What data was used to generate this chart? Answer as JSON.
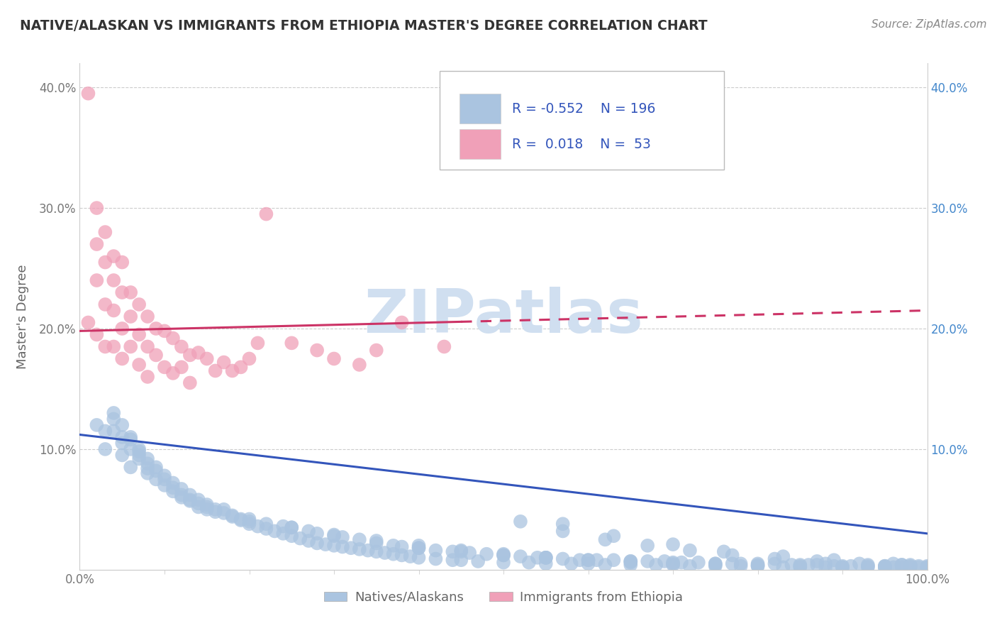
{
  "title": "NATIVE/ALASKAN VS IMMIGRANTS FROM ETHIOPIA MASTER'S DEGREE CORRELATION CHART",
  "source": "Source: ZipAtlas.com",
  "ylabel": "Master's Degree",
  "watermark": "ZIPatlas",
  "xlim": [
    0,
    1.0
  ],
  "ylim": [
    0,
    0.42
  ],
  "blue_R": "-0.552",
  "blue_N": "196",
  "pink_R": "0.018",
  "pink_N": "53",
  "blue_color": "#aac4e0",
  "pink_color": "#f0a0b8",
  "blue_line_color": "#3355bb",
  "pink_line_color": "#cc3366",
  "legend_text_color": "#3355bb",
  "title_color": "#333333",
  "watermark_color": "#d0dff0",
  "grid_color": "#cccccc",
  "background_color": "#ffffff",
  "blue_line_y0": 0.112,
  "blue_line_y1": 0.03,
  "pink_line_y0": 0.198,
  "pink_line_y1": 0.215,
  "blue_scatter_x": [
    0.02,
    0.03,
    0.04,
    0.05,
    0.06,
    0.07,
    0.08,
    0.09,
    0.1,
    0.11,
    0.12,
    0.13,
    0.14,
    0.15,
    0.16,
    0.17,
    0.18,
    0.19,
    0.2,
    0.22,
    0.24,
    0.25,
    0.27,
    0.28,
    0.3,
    0.31,
    0.33,
    0.35,
    0.37,
    0.38,
    0.4,
    0.42,
    0.44,
    0.46,
    0.48,
    0.5,
    0.52,
    0.54,
    0.55,
    0.57,
    0.59,
    0.61,
    0.63,
    0.65,
    0.67,
    0.69,
    0.71,
    0.73,
    0.75,
    0.77,
    0.78,
    0.8,
    0.82,
    0.84,
    0.86,
    0.87,
    0.89,
    0.91,
    0.93,
    0.95,
    0.96,
    0.97,
    0.98,
    0.99,
    1.0,
    1.0,
    0.99,
    0.98,
    0.97,
    0.96,
    0.04,
    0.05,
    0.06,
    0.07,
    0.08,
    0.09,
    0.1,
    0.11,
    0.12,
    0.13,
    0.14,
    0.15,
    0.16,
    0.17,
    0.18,
    0.19,
    0.2,
    0.21,
    0.22,
    0.23,
    0.24,
    0.25,
    0.26,
    0.27,
    0.28,
    0.29,
    0.3,
    0.31,
    0.32,
    0.33,
    0.34,
    0.35,
    0.36,
    0.37,
    0.38,
    0.39,
    0.4,
    0.42,
    0.44,
    0.45,
    0.47,
    0.5,
    0.53,
    0.55,
    0.58,
    0.6,
    0.62,
    0.65,
    0.68,
    0.7,
    0.72,
    0.75,
    0.78,
    0.8,
    0.83,
    0.85,
    0.88,
    0.9,
    0.93,
    0.95,
    0.05,
    0.06,
    0.07,
    0.08,
    0.09,
    0.1,
    0.11,
    0.12,
    0.13,
    0.14,
    0.52,
    0.57,
    0.62,
    0.67,
    0.72,
    0.77,
    0.82,
    0.87,
    0.92,
    0.97,
    0.15,
    0.2,
    0.25,
    0.3,
    0.35,
    0.4,
    0.45,
    0.5,
    0.55,
    0.6,
    0.65,
    0.7,
    0.75,
    0.8,
    0.85,
    0.9,
    0.95,
    1.0,
    0.03,
    0.04,
    0.05,
    0.06,
    0.07,
    0.08,
    0.57,
    0.63,
    0.7,
    0.76,
    0.83,
    0.89,
    0.4,
    0.45,
    0.5,
    0.55,
    0.6,
    0.65,
    0.7,
    0.75,
    0.8,
    0.85,
    0.9,
    0.95,
    1.0,
    0.88,
    0.93,
    0.98
  ],
  "blue_scatter_y": [
    0.12,
    0.1,
    0.115,
    0.105,
    0.085,
    0.095,
    0.08,
    0.075,
    0.07,
    0.065,
    0.06,
    0.058,
    0.055,
    0.052,
    0.048,
    0.05,
    0.045,
    0.042,
    0.04,
    0.038,
    0.036,
    0.035,
    0.032,
    0.03,
    0.028,
    0.027,
    0.025,
    0.022,
    0.02,
    0.019,
    0.018,
    0.016,
    0.015,
    0.014,
    0.013,
    0.012,
    0.011,
    0.01,
    0.01,
    0.009,
    0.008,
    0.008,
    0.008,
    0.007,
    0.007,
    0.007,
    0.006,
    0.006,
    0.005,
    0.005,
    0.005,
    0.005,
    0.005,
    0.004,
    0.004,
    0.004,
    0.003,
    0.003,
    0.003,
    0.003,
    0.002,
    0.002,
    0.002,
    0.002,
    0.002,
    0.003,
    0.003,
    0.004,
    0.004,
    0.005,
    0.13,
    0.12,
    0.11,
    0.1,
    0.092,
    0.085,
    0.078,
    0.072,
    0.067,
    0.062,
    0.058,
    0.054,
    0.05,
    0.047,
    0.044,
    0.041,
    0.038,
    0.036,
    0.034,
    0.032,
    0.03,
    0.028,
    0.026,
    0.024,
    0.022,
    0.021,
    0.02,
    0.019,
    0.018,
    0.017,
    0.016,
    0.015,
    0.014,
    0.013,
    0.012,
    0.011,
    0.01,
    0.009,
    0.008,
    0.008,
    0.007,
    0.006,
    0.006,
    0.005,
    0.005,
    0.005,
    0.004,
    0.004,
    0.004,
    0.004,
    0.003,
    0.003,
    0.003,
    0.003,
    0.002,
    0.002,
    0.002,
    0.002,
    0.002,
    0.002,
    0.095,
    0.108,
    0.098,
    0.088,
    0.082,
    0.075,
    0.068,
    0.062,
    0.057,
    0.052,
    0.04,
    0.032,
    0.025,
    0.02,
    0.016,
    0.012,
    0.009,
    0.007,
    0.005,
    0.004,
    0.05,
    0.042,
    0.035,
    0.029,
    0.024,
    0.02,
    0.016,
    0.013,
    0.01,
    0.008,
    0.006,
    0.005,
    0.004,
    0.003,
    0.003,
    0.002,
    0.002,
    0.001,
    0.115,
    0.125,
    0.11,
    0.1,
    0.092,
    0.084,
    0.038,
    0.028,
    0.021,
    0.015,
    0.011,
    0.008,
    0.018,
    0.015,
    0.012,
    0.01,
    0.008,
    0.007,
    0.006,
    0.005,
    0.004,
    0.004,
    0.003,
    0.003,
    0.002,
    0.005,
    0.004,
    0.003
  ],
  "pink_scatter_x": [
    0.01,
    0.01,
    0.02,
    0.02,
    0.02,
    0.02,
    0.03,
    0.03,
    0.03,
    0.03,
    0.04,
    0.04,
    0.04,
    0.04,
    0.05,
    0.05,
    0.05,
    0.05,
    0.06,
    0.06,
    0.06,
    0.07,
    0.07,
    0.07,
    0.08,
    0.08,
    0.08,
    0.09,
    0.09,
    0.1,
    0.1,
    0.11,
    0.11,
    0.12,
    0.12,
    0.13,
    0.13,
    0.14,
    0.15,
    0.16,
    0.17,
    0.18,
    0.19,
    0.2,
    0.21,
    0.22,
    0.25,
    0.28,
    0.3,
    0.33,
    0.35,
    0.38,
    0.43
  ],
  "pink_scatter_y": [
    0.395,
    0.205,
    0.3,
    0.27,
    0.24,
    0.195,
    0.28,
    0.255,
    0.22,
    0.185,
    0.26,
    0.24,
    0.215,
    0.185,
    0.255,
    0.23,
    0.2,
    0.175,
    0.23,
    0.21,
    0.185,
    0.22,
    0.195,
    0.17,
    0.21,
    0.185,
    0.16,
    0.2,
    0.178,
    0.198,
    0.168,
    0.192,
    0.163,
    0.185,
    0.168,
    0.178,
    0.155,
    0.18,
    0.175,
    0.165,
    0.172,
    0.165,
    0.168,
    0.175,
    0.188,
    0.295,
    0.188,
    0.182,
    0.175,
    0.17,
    0.182,
    0.205,
    0.185
  ]
}
